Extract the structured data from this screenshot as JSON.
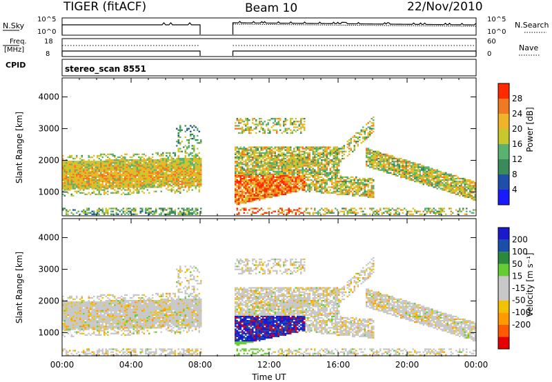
{
  "header": {
    "radar": "TIGER (fitACF)",
    "beam": "Beam 10",
    "date": "22/Nov/2010"
  },
  "top_panel": {
    "left_label": "N.Sky",
    "left_tick_high": "10^5",
    "left_tick_low": "10^0",
    "right_tick_high": "10^5",
    "right_tick_low": "10^0",
    "right_label": "N.Search"
  },
  "freq_panel": {
    "left_label_1": "Freq.",
    "left_label_2": "[MHz]",
    "left_tick_high": "18",
    "left_tick_low": "8",
    "right_tick_high": "60",
    "right_tick_low": "0",
    "right_label": "Nave"
  },
  "cpid_panel": {
    "label": "CPID",
    "mode": "stereo_scan 8551"
  },
  "colors": {
    "power": [
      "#1a1aff",
      "#1f4fa8",
      "#3a8a5a",
      "#59b26e",
      "#c8c82c",
      "#f0b428",
      "#f07a22",
      "#ff2a00"
    ],
    "velocity": [
      "#e60000",
      "#ff5a00",
      "#ff9a00",
      "#f2c200",
      "#c8c8c8",
      "#c8c8c8",
      "#66cc33",
      "#2a8a3a",
      "#1a4fa8",
      "#1a1acc"
    ]
  },
  "chart_data": [
    {
      "type": "heatmap",
      "name": "Power",
      "ylabel": "Slant Range [km]",
      "yticks": [
        "1000",
        "2000",
        "3000",
        "4000"
      ],
      "ylim": [
        250,
        4600
      ],
      "xlim": [
        0,
        24
      ],
      "colorbar": {
        "label": "Power [dB]",
        "ticks": [
          "4",
          "8",
          "12",
          "16",
          "20",
          "24",
          "28"
        ],
        "range": [
          0,
          32
        ]
      },
      "data_gap_hours": [
        8.0,
        9.9
      ]
    },
    {
      "type": "heatmap",
      "name": "Velocity",
      "ylabel": "Slant Range [km]",
      "yticks": [
        "1000",
        "2000",
        "3000",
        "4000"
      ],
      "ylim": [
        250,
        4600
      ],
      "xlim": [
        0,
        24
      ],
      "xlabel": "Time UT",
      "xticks": [
        "00:00",
        "04:00",
        "08:00",
        "12:00",
        "16:00",
        "20:00",
        "00:00"
      ],
      "colorbar": {
        "label": "Velocity [m s⁻¹]",
        "ticks": [
          "200",
          "100",
          "50",
          "15",
          "-15",
          "-50",
          "-100",
          "-200"
        ]
      },
      "data_gap_hours": [
        8.0,
        9.9
      ]
    }
  ]
}
